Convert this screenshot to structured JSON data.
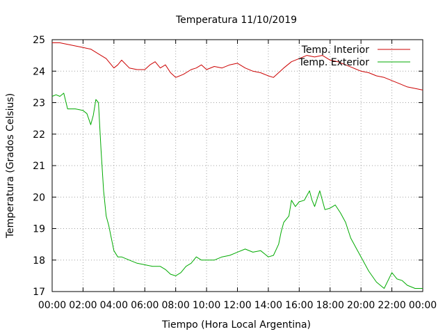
{
  "chart_data": {
    "type": "line",
    "title": "Temperatura 11/10/2019",
    "xlabel": "Tiempo (Hora Local Argentina)",
    "ylabel": "Temperatura (Grados Celsius)",
    "xlim": [
      "00:00",
      "24:00"
    ],
    "ylim": [
      17,
      25
    ],
    "x_ticks": [
      "00:00",
      "02:00",
      "04:00",
      "06:00",
      "08:00",
      "10:00",
      "12:00",
      "14:00",
      "16:00",
      "18:00",
      "20:00",
      "22:00",
      "00:00"
    ],
    "y_ticks": [
      "17",
      "18",
      "19",
      "20",
      "21",
      "22",
      "23",
      "24",
      "25"
    ],
    "grid": true,
    "legend_position": "top-right",
    "series": [
      {
        "name": "Temp. Interior",
        "color": "#cc0000",
        "x": [
          "00:00",
          "00:30",
          "01:00",
          "01:30",
          "02:00",
          "02:30",
          "03:00",
          "03:30",
          "04:00",
          "04:15",
          "04:30",
          "05:00",
          "05:30",
          "06:00",
          "06:20",
          "06:40",
          "07:00",
          "07:20",
          "07:40",
          "08:00",
          "08:30",
          "09:00",
          "09:20",
          "09:40",
          "10:00",
          "10:30",
          "11:00",
          "11:30",
          "12:00",
          "12:30",
          "13:00",
          "13:30",
          "14:00",
          "14:20",
          "14:40",
          "15:00",
          "15:30",
          "16:00",
          "16:30",
          "17:00",
          "17:30",
          "18:00",
          "18:30",
          "19:00",
          "19:30",
          "20:00",
          "20:30",
          "21:00",
          "21:30",
          "22:00",
          "22:30",
          "23:00",
          "23:30",
          "24:00"
        ],
        "values": [
          24.9,
          24.9,
          24.85,
          24.8,
          24.75,
          24.7,
          24.55,
          24.4,
          24.1,
          24.2,
          24.35,
          24.1,
          24.05,
          24.05,
          24.2,
          24.3,
          24.1,
          24.2,
          23.95,
          23.8,
          23.9,
          24.05,
          24.1,
          24.2,
          24.05,
          24.15,
          24.1,
          24.2,
          24.25,
          24.1,
          24.0,
          23.95,
          23.85,
          23.8,
          23.95,
          24.1,
          24.3,
          24.4,
          24.5,
          24.45,
          24.5,
          24.35,
          24.3,
          24.2,
          24.1,
          24.0,
          23.95,
          23.85,
          23.8,
          23.7,
          23.6,
          23.5,
          23.45,
          23.4
        ]
      },
      {
        "name": "Temp. Exterior",
        "color": "#00aa00",
        "x": [
          "00:00",
          "00:15",
          "00:30",
          "00:45",
          "01:00",
          "01:30",
          "02:00",
          "02:15",
          "02:30",
          "02:40",
          "02:50",
          "03:00",
          "03:10",
          "03:20",
          "03:30",
          "03:40",
          "03:50",
          "04:00",
          "04:15",
          "04:30",
          "05:00",
          "05:30",
          "06:00",
          "06:30",
          "07:00",
          "07:20",
          "07:40",
          "08:00",
          "08:20",
          "08:40",
          "09:00",
          "09:20",
          "09:40",
          "10:00",
          "10:30",
          "11:00",
          "11:30",
          "12:00",
          "12:30",
          "13:00",
          "13:30",
          "14:00",
          "14:20",
          "14:40",
          "14:50",
          "15:00",
          "15:20",
          "15:30",
          "15:45",
          "16:00",
          "16:20",
          "16:40",
          "16:50",
          "17:00",
          "17:20",
          "17:40",
          "18:00",
          "18:20",
          "18:40",
          "19:00",
          "19:20",
          "19:40",
          "20:00",
          "20:30",
          "21:00",
          "21:30",
          "22:00",
          "22:20",
          "22:40",
          "23:00",
          "23:30",
          "24:00"
        ],
        "values": [
          23.2,
          23.25,
          23.2,
          23.3,
          22.8,
          22.8,
          22.75,
          22.65,
          22.3,
          22.6,
          23.1,
          23.0,
          21.5,
          20.2,
          19.4,
          19.1,
          18.7,
          18.3,
          18.1,
          18.1,
          18.0,
          17.9,
          17.85,
          17.8,
          17.8,
          17.7,
          17.55,
          17.5,
          17.6,
          17.8,
          17.9,
          18.1,
          18.0,
          18.0,
          18.0,
          18.1,
          18.15,
          18.25,
          18.35,
          18.25,
          18.3,
          18.1,
          18.15,
          18.5,
          18.9,
          19.2,
          19.4,
          19.9,
          19.7,
          19.85,
          19.9,
          20.2,
          19.9,
          19.7,
          20.2,
          19.6,
          19.65,
          19.75,
          19.5,
          19.2,
          18.7,
          18.4,
          18.1,
          17.65,
          17.3,
          17.1,
          17.6,
          17.4,
          17.35,
          17.2,
          17.1,
          17.1
        ]
      }
    ]
  }
}
